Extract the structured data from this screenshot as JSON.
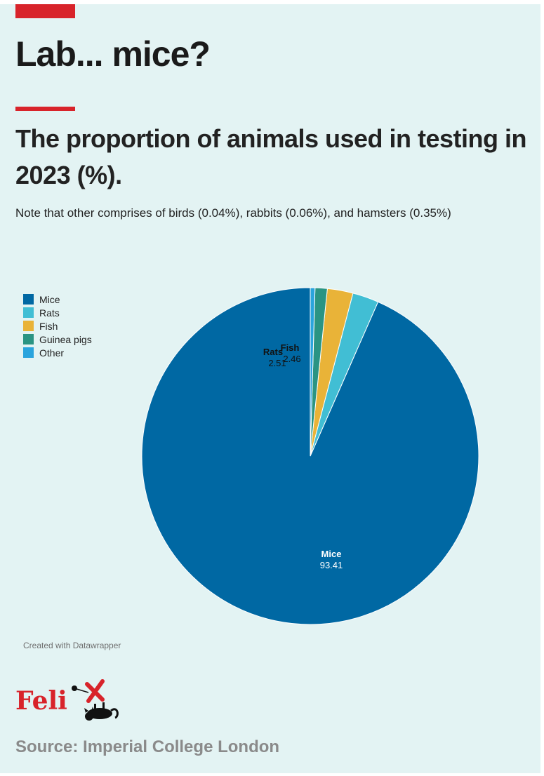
{
  "header": {
    "title": "Lab... mice?",
    "subtitle": "The proportion of animals used in testing in 2023 (%).",
    "note": "Note that other comprises of birds (0.04%), rabbits (0.06%), and hamsters (0.35%)"
  },
  "chart_data": {
    "type": "pie",
    "title": "The proportion of animals used in testing in 2023 (%).",
    "categories": [
      "Mice",
      "Rats",
      "Fish",
      "Guinea pigs",
      "Other"
    ],
    "values": [
      93.41,
      2.51,
      2.46,
      1.17,
      0.45
    ],
    "colors": [
      "#0068a3",
      "#41bed4",
      "#e9b338",
      "#2a9483",
      "#2aa4dd"
    ],
    "labels_shown": [
      {
        "name": "Rats",
        "value": "2.51"
      },
      {
        "name": "Fish",
        "value": "2.46"
      },
      {
        "name": "Mice",
        "value": "93.41"
      }
    ],
    "legend_position": "top-left"
  },
  "footer": {
    "credit": "Created with Datawrapper",
    "logo_text": "Feli",
    "source": "Source: Imperial College London"
  },
  "colors": {
    "accent": "#d8232a",
    "background": "#e3f3f3"
  }
}
